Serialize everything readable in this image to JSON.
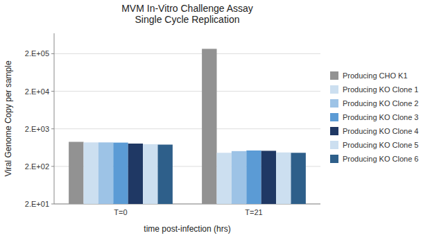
{
  "chart_data": {
    "type": "bar",
    "title": "MVM In-Vitro Challenge Assay\nSingle Cycle Replication",
    "x_label": "time post-infection (hrs)",
    "y_label": "Viral Genome Copy per sample",
    "categories": [
      "T=0",
      "T=21"
    ],
    "series": [
      {
        "name": "Producing CHO K1",
        "color": "#929292",
        "values": [
          900,
          270000
        ]
      },
      {
        "name": "Producing KO Clone 1",
        "color": "#CCDFF0",
        "values": [
          870,
          460
        ]
      },
      {
        "name": "Producing KO Clone 2",
        "color": "#9DC3E6",
        "values": [
          870,
          510
        ]
      },
      {
        "name": "Producing KO Clone 3",
        "color": "#5B9BD5",
        "values": [
          860,
          530
        ]
      },
      {
        "name": "Producing KO Clone 4",
        "color": "#1F3864",
        "values": [
          810,
          520
        ]
      },
      {
        "name": "Producing KO Clone 5",
        "color": "#CCDFF0",
        "values": [
          780,
          470
        ]
      },
      {
        "name": "Producing KO Clone 6",
        "color": "#2E5F8A",
        "values": [
          760,
          460
        ]
      }
    ],
    "ylim": [
      20,
      700000
    ],
    "yticks": [
      {
        "value": 20,
        "label": "2.E+01"
      },
      {
        "value": 200,
        "label": "2.E+02"
      },
      {
        "value": 2000,
        "label": "2.E+03"
      },
      {
        "value": 20000,
        "label": "2.E+04"
      },
      {
        "value": 200000,
        "label": "2.E+05"
      }
    ],
    "log": "y",
    "grid": true,
    "legend": "right"
  }
}
